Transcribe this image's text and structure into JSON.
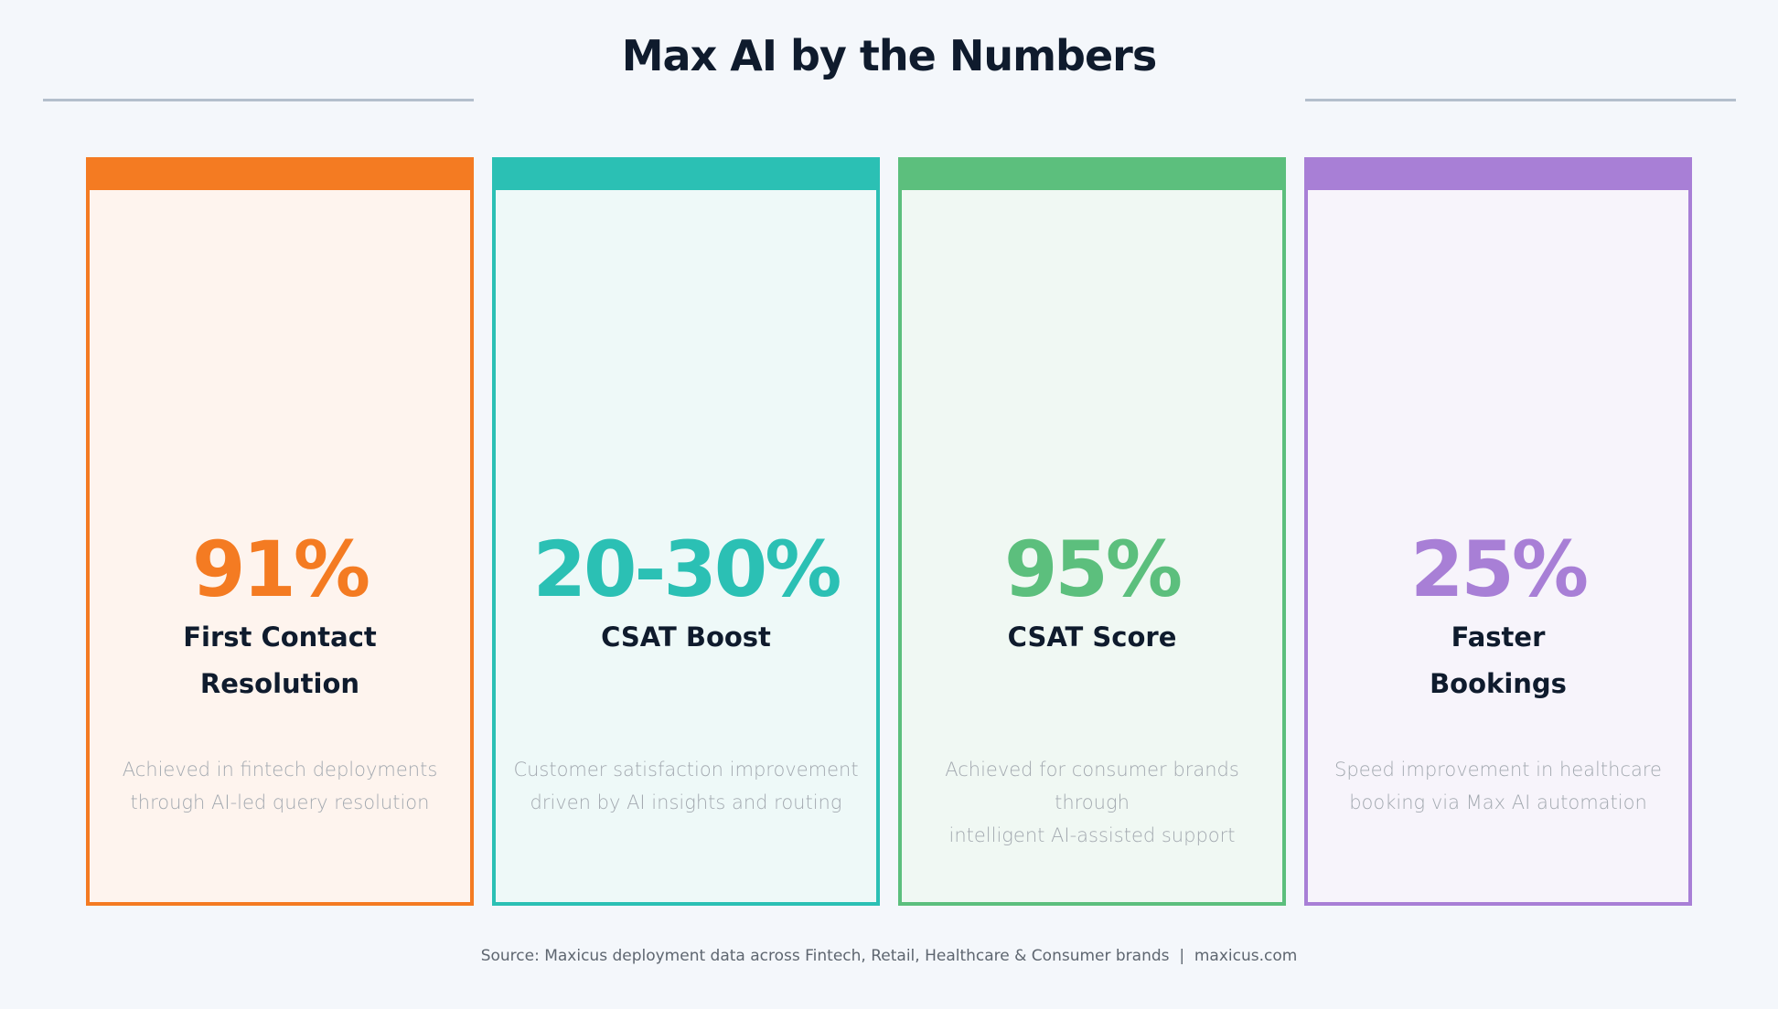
{
  "title": "Max AI by the Numbers",
  "cards": [
    {
      "value": "91%",
      "label_lines": [
        "First Contact",
        "Resolution"
      ],
      "desc_lines": [
        "Achieved in fintech deployments",
        "through AI-led query resolution"
      ],
      "color": "#f47b22",
      "bg": "#fef4ee"
    },
    {
      "value": "20-30%",
      "label_lines": [
        "CSAT Boost",
        ""
      ],
      "desc_lines": [
        "Customer satisfaction improvement",
        "driven by AI insights and routing"
      ],
      "color": "#2bc0b4",
      "bg": "#eef9f8"
    },
    {
      "value": "95%",
      "label_lines": [
        "CSAT Score",
        ""
      ],
      "desc_lines": [
        "Achieved for consumer brands through",
        "intelligent AI-assisted support"
      ],
      "color": "#5cbf7d",
      "bg": "#f0f8f3"
    },
    {
      "value": "25%",
      "label_lines": [
        "Faster",
        "Bookings"
      ],
      "desc_lines": [
        "Speed improvement in healthcare",
        "booking via Max AI automation"
      ],
      "color": "#a87fd6",
      "bg": "#f7f4fb"
    }
  ],
  "footer": "Source: Maxicus deployment data across Fintech, Retail, Healthcare & Consumer brands  |  maxicus.com"
}
